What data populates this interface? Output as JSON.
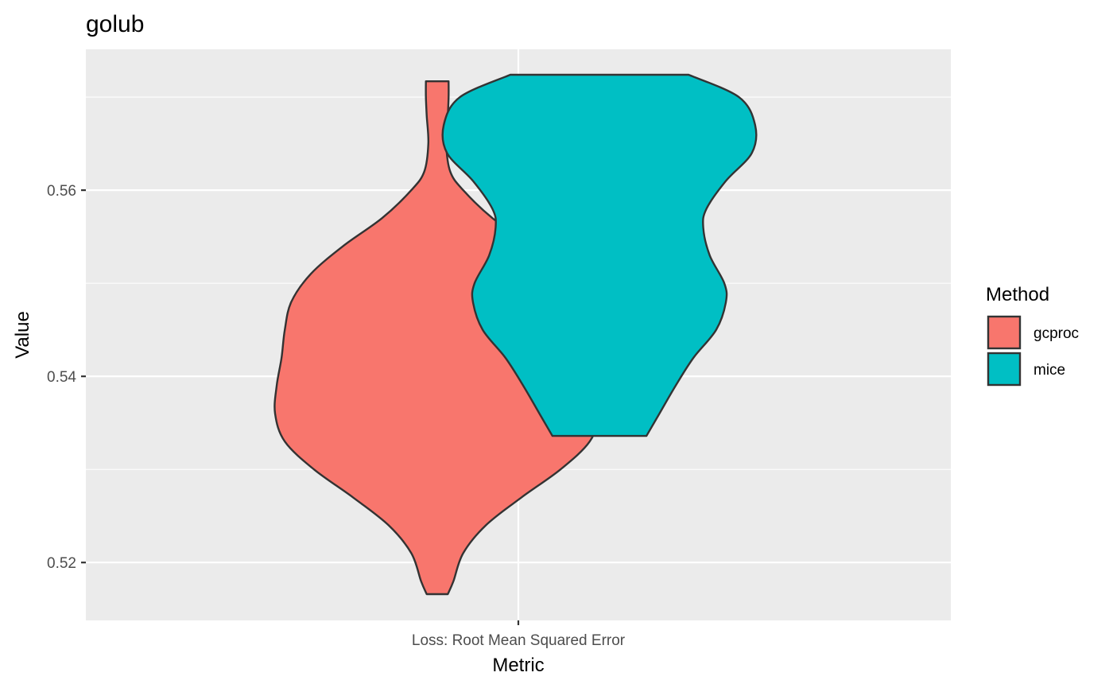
{
  "chart_data": {
    "type": "violin",
    "title": "golub",
    "xlabel": "Metric",
    "ylabel": "Value",
    "categories": [
      "Loss: Root Mean Squared Error"
    ],
    "yticks": [
      0.52,
      0.54,
      0.56
    ],
    "ytick_labels": [
      "0.52",
      "0.54",
      "0.56"
    ],
    "ylim": [
      0.5137,
      0.5753
    ],
    "grid": true,
    "panel_background": "#ebebeb",
    "legend": {
      "title": "Method",
      "position": "right",
      "items": [
        {
          "label": "gcproc",
          "color": "#f8766d"
        },
        {
          "label": "mice",
          "color": "#00bfc4"
        }
      ]
    },
    "series": [
      {
        "name": "gcproc",
        "color": "#f8766d",
        "category": "Loss: Root Mean Squared Error",
        "min": 0.5166,
        "max": 0.5717,
        "density_profile": [
          [
            0.5717,
            0.07
          ],
          [
            0.57,
            0.07
          ],
          [
            0.568,
            0.065
          ],
          [
            0.565,
            0.055
          ],
          [
            0.562,
            0.08
          ],
          [
            0.56,
            0.16
          ],
          [
            0.557,
            0.34
          ],
          [
            0.554,
            0.58
          ],
          [
            0.551,
            0.78
          ],
          [
            0.548,
            0.9
          ],
          [
            0.545,
            0.94
          ],
          [
            0.542,
            0.96
          ],
          [
            0.539,
            0.99
          ],
          [
            0.536,
            1.0
          ],
          [
            0.533,
            0.94
          ],
          [
            0.53,
            0.76
          ],
          [
            0.527,
            0.52
          ],
          [
            0.524,
            0.3
          ],
          [
            0.521,
            0.16
          ],
          [
            0.518,
            0.1
          ],
          [
            0.5166,
            0.065
          ]
        ]
      },
      {
        "name": "mice",
        "color": "#00bfc4",
        "category": "Loss: Root Mean Squared Error",
        "min": 0.5336,
        "max": 0.5724,
        "density_profile": [
          [
            0.5724,
            0.55
          ],
          [
            0.57,
            0.86
          ],
          [
            0.567,
            0.96
          ],
          [
            0.564,
            0.94
          ],
          [
            0.561,
            0.78
          ],
          [
            0.558,
            0.66
          ],
          [
            0.556,
            0.64
          ],
          [
            0.553,
            0.68
          ],
          [
            0.55,
            0.77
          ],
          [
            0.548,
            0.78
          ],
          [
            0.545,
            0.72
          ],
          [
            0.542,
            0.58
          ],
          [
            0.539,
            0.47
          ],
          [
            0.536,
            0.37
          ],
          [
            0.5336,
            0.29
          ]
        ]
      }
    ]
  }
}
